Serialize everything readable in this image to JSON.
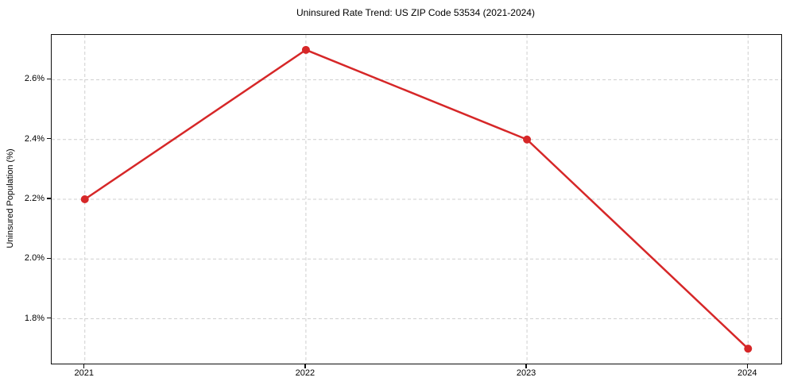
{
  "chart_data": {
    "type": "line",
    "title": "Uninsured Rate Trend: US ZIP Code 53534 (2021-2024)",
    "xlabel": "",
    "ylabel": "Uninsured Population (%)",
    "x": [
      2021,
      2022,
      2023,
      2024
    ],
    "categories": [
      "2021",
      "2022",
      "2023",
      "2024"
    ],
    "series": [
      {
        "name": "Uninsured Population (%)",
        "values": [
          2.2,
          2.7,
          2.4,
          1.7
        ]
      }
    ],
    "ytick_values": [
      1.8,
      2.0,
      2.2,
      2.4,
      2.6
    ],
    "ytick_labels": [
      "1.8%",
      "2.0%",
      "2.2%",
      "2.4%",
      "2.6%"
    ],
    "xlim": [
      2020.85,
      2024.15
    ],
    "ylim": [
      1.65,
      2.75
    ],
    "grid": true,
    "grid_style": "dashed",
    "legend_position": "none",
    "colors": {
      "line": "#d62728",
      "marker": "#d62728",
      "grid": "#cfcfcf",
      "axis": "#0d0d0d",
      "text": "#000000",
      "background": "#ffffff"
    }
  }
}
